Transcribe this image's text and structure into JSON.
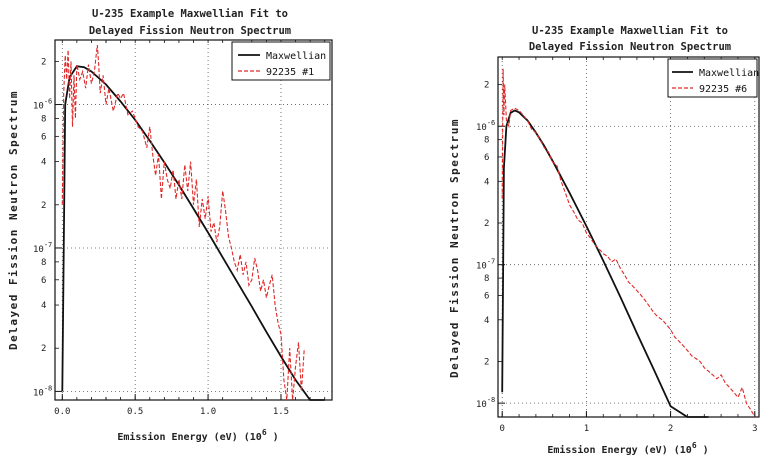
{
  "chart_data": [
    {
      "type": "line",
      "title_lines": [
        "U-235 Example Maxwellian Fit to",
        "Delayed Fission Neutron Spectrum"
      ],
      "xlabel": "Emission Energy (eV) (10",
      "xlabel_sup": "6",
      "xlabel_end": " )",
      "ylabel": "Delayed Fission Neutron Spectrum",
      "xlim": [
        -0.05,
        1.85
      ],
      "ylim_log": [
        -8.06,
        -5.55
      ],
      "x_ticks": [
        "0.0",
        "0.5",
        "1.0",
        "1.5"
      ],
      "x_tick_values": [
        0,
        0.5,
        1.0,
        1.5
      ],
      "y_ticks": [
        {
          "label": "10",
          "sup": "-6",
          "value": 1e-06
        },
        {
          "label": "10",
          "sup": "-7",
          "value": 1e-07
        },
        {
          "label": "10",
          "sup": "-8",
          "value": 1e-08
        }
      ],
      "y_minor_ticks": [
        {
          "label": "2",
          "value": 2e-06
        },
        {
          "label": "8",
          "value": 8e-07
        },
        {
          "label": "6",
          "value": 6e-07
        },
        {
          "label": "4",
          "value": 4e-07
        },
        {
          "label": "2",
          "value": 2e-07
        },
        {
          "label": "8",
          "value": 8e-08
        },
        {
          "label": "6",
          "value": 6e-08
        },
        {
          "label": "4",
          "value": 4e-08
        },
        {
          "label": "2",
          "value": 2e-08
        }
      ],
      "grid": true,
      "legend_position": "top-right",
      "colors": {
        "fit": "#111111",
        "data": "#e02828"
      },
      "series": [
        {
          "name": "Maxwellian",
          "style": "solid",
          "x": [
            0.0,
            0.02,
            0.05,
            0.1,
            0.15,
            0.2,
            0.3,
            0.4,
            0.5,
            0.6,
            0.7,
            0.8,
            0.9,
            1.0,
            1.1,
            1.2,
            1.3,
            1.4,
            1.5,
            1.6,
            1.7,
            1.8
          ],
          "y": [
            1e-08,
            1e-06,
            1.55e-06,
            1.85e-06,
            1.82e-06,
            1.7e-06,
            1.38e-06,
            1.05e-06,
            7.8e-07,
            5.6e-07,
            3.95e-07,
            2.75e-07,
            1.88e-07,
            1.28e-07,
            8.6e-08,
            5.8e-08,
            3.9e-08,
            2.6e-08,
            1.75e-08,
            1.2e-08,
            8.5e-09,
            6.4e-09
          ]
        },
        {
          "name": "92235 #1",
          "style": "dashed",
          "x": [
            0.0,
            0.01,
            0.02,
            0.03,
            0.04,
            0.05,
            0.06,
            0.07,
            0.08,
            0.09,
            0.1,
            0.12,
            0.14,
            0.16,
            0.18,
            0.2,
            0.22,
            0.24,
            0.25,
            0.26,
            0.28,
            0.3,
            0.32,
            0.35,
            0.38,
            0.4,
            0.42,
            0.45,
            0.48,
            0.5,
            0.52,
            0.55,
            0.58,
            0.6,
            0.62,
            0.64,
            0.66,
            0.68,
            0.7,
            0.72,
            0.74,
            0.76,
            0.78,
            0.8,
            0.82,
            0.84,
            0.86,
            0.88,
            0.9,
            0.92,
            0.94,
            0.96,
            0.98,
            1.0,
            1.02,
            1.04,
            1.06,
            1.08,
            1.1,
            1.12,
            1.14,
            1.16,
            1.18,
            1.2,
            1.22,
            1.24,
            1.26,
            1.28,
            1.3,
            1.32,
            1.34,
            1.36,
            1.38,
            1.4,
            1.42,
            1.44,
            1.46,
            1.48,
            1.5,
            1.52,
            1.54,
            1.56,
            1.58,
            1.6,
            1.62,
            1.64,
            1.66
          ],
          "y": [
            2e-07,
            1.2e-06,
            2.2e-06,
            1.5e-06,
            2.4e-06,
            1.1e-06,
            2e-06,
            7e-07,
            1.6e-06,
            8e-07,
            1.9e-06,
            1.5e-06,
            1.7e-06,
            1.3e-06,
            1.9e-06,
            1.4e-06,
            1.7e-06,
            2.6e-06,
            1.9e-06,
            1.2e-06,
            1.6e-06,
            1e-06,
            1.3e-06,
            9e-07,
            1.2e-06,
            1.1e-06,
            1.2e-06,
            8.5e-07,
            9e-07,
            8e-07,
            7e-07,
            6.5e-07,
            5e-07,
            7e-07,
            4.5e-07,
            3.2e-07,
            4.5e-07,
            2.2e-07,
            4e-07,
            3e-07,
            2.6e-07,
            3.5e-07,
            2.2e-07,
            3e-07,
            2.2e-07,
            3.8e-07,
            2.5e-07,
            4e-07,
            2e-07,
            3e-07,
            1.4e-07,
            2.2e-07,
            1.6e-07,
            2.3e-07,
            1.3e-07,
            1.5e-07,
            1.1e-07,
            1.4e-07,
            2.5e-07,
            1.8e-07,
            1.2e-07,
            1e-07,
            8e-08,
            7e-08,
            9e-08,
            6.5e-08,
            8e-08,
            5.5e-08,
            6e-08,
            8.5e-08,
            7e-08,
            5e-08,
            6e-08,
            4.5e-08,
            5.5e-08,
            6.5e-08,
            4e-08,
            3e-08,
            2.5e-08,
            1.2e-08,
            8e-09,
            2e-08,
            8e-09,
            1.5e-08,
            2.2e-08,
            1e-08,
            2e-08
          ]
        }
      ]
    },
    {
      "type": "line",
      "title_lines": [
        "U-235 Example Maxwellian Fit to",
        "Delayed Fission Neutron Spectrum"
      ],
      "xlabel": "Emission Energy (eV) (10",
      "xlabel_sup": "6",
      "xlabel_end": " )",
      "ylabel": "Delayed Fission Neutron Spectrum",
      "xlim": [
        -0.05,
        3.05
      ],
      "ylim_log": [
        -8.1,
        -5.5
      ],
      "x_ticks": [
        "0",
        "1",
        "2",
        "3"
      ],
      "x_tick_values": [
        0,
        1,
        2,
        3
      ],
      "y_ticks": [
        {
          "label": "10",
          "sup": "-6",
          "value": 1e-06
        },
        {
          "label": "10",
          "sup": "-7",
          "value": 1e-07
        },
        {
          "label": "10",
          "sup": "-8",
          "value": 1e-08
        }
      ],
      "y_minor_ticks": [
        {
          "label": "2",
          "value": 2e-06
        },
        {
          "label": "8",
          "value": 8e-07
        },
        {
          "label": "6",
          "value": 6e-07
        },
        {
          "label": "4",
          "value": 4e-07
        },
        {
          "label": "2",
          "value": 2e-07
        },
        {
          "label": "8",
          "value": 8e-08
        },
        {
          "label": "6",
          "value": 6e-08
        },
        {
          "label": "4",
          "value": 4e-08
        },
        {
          "label": "2",
          "value": 2e-08
        }
      ],
      "grid": true,
      "legend_position": "top-right",
      "colors": {
        "fit": "#111111",
        "data": "#e02828"
      },
      "series": [
        {
          "name": "Maxwellian",
          "style": "solid",
          "x": [
            0.0,
            0.02,
            0.05,
            0.1,
            0.15,
            0.2,
            0.3,
            0.4,
            0.5,
            0.6,
            0.8,
            1.0,
            1.2,
            1.4,
            1.6,
            1.8,
            2.0,
            2.2,
            2.4,
            2.45
          ],
          "y": [
            1.2e-08,
            5e-07,
            1e-06,
            1.25e-06,
            1.3e-06,
            1.26e-06,
            1.1e-06,
            9e-07,
            7.2e-07,
            5.6e-07,
            3.3e-07,
            1.9e-07,
            1.07e-07,
            5.9e-08,
            3.2e-08,
            1.75e-08,
            9.5e-09,
            5.1e-09,
            2.8e-09,
            2.4e-09
          ]
        },
        {
          "name": "92235 #6",
          "style": "dashed",
          "x": [
            0.0,
            0.01,
            0.02,
            0.03,
            0.05,
            0.08,
            0.1,
            0.15,
            0.2,
            0.25,
            0.3,
            0.35,
            0.4,
            0.45,
            0.5,
            0.55,
            0.6,
            0.65,
            0.7,
            0.75,
            0.8,
            0.85,
            0.9,
            0.95,
            1.0,
            1.05,
            1.1,
            1.15,
            1.2,
            1.25,
            1.3,
            1.35,
            1.4,
            1.45,
            1.5,
            1.55,
            1.6,
            1.65,
            1.7,
            1.75,
            1.8,
            1.85,
            1.9,
            1.95,
            2.0,
            2.05,
            2.1,
            2.15,
            2.2,
            2.25,
            2.3,
            2.35,
            2.4,
            2.45,
            2.5,
            2.55,
            2.6,
            2.65,
            2.7,
            2.75,
            2.8,
            2.85,
            2.9,
            2.95,
            3.0
          ],
          "y": [
            3e-07,
            2.6e-06,
            1.2e-06,
            2e-06,
            1.1e-06,
            1e-06,
            1.3e-06,
            1.35e-06,
            1.3e-06,
            1.2e-06,
            1.1e-06,
            9.5e-07,
            9e-07,
            8e-07,
            7e-07,
            6.5e-07,
            5.5e-07,
            5.2e-07,
            4e-07,
            3.3e-07,
            2.7e-07,
            2.4e-07,
            2.1e-07,
            2e-07,
            1.7e-07,
            1.55e-07,
            1.4e-07,
            1.3e-07,
            1.2e-07,
            1.15e-07,
            1.05e-07,
            1.1e-07,
            9.5e-08,
            8.5e-08,
            7.5e-08,
            7e-08,
            6.5e-08,
            6e-08,
            5.5e-08,
            5e-08,
            4.5e-08,
            4.2e-08,
            4e-08,
            3.7e-08,
            3.4e-08,
            3e-08,
            2.8e-08,
            2.6e-08,
            2.4e-08,
            2.2e-08,
            2.1e-08,
            2e-08,
            1.8e-08,
            1.7e-08,
            1.6e-08,
            1.5e-08,
            1.6e-08,
            1.4e-08,
            1.3e-08,
            1.2e-08,
            1.1e-08,
            1.3e-08,
            1e-08,
            9e-09,
            8e-09
          ]
        }
      ]
    }
  ]
}
